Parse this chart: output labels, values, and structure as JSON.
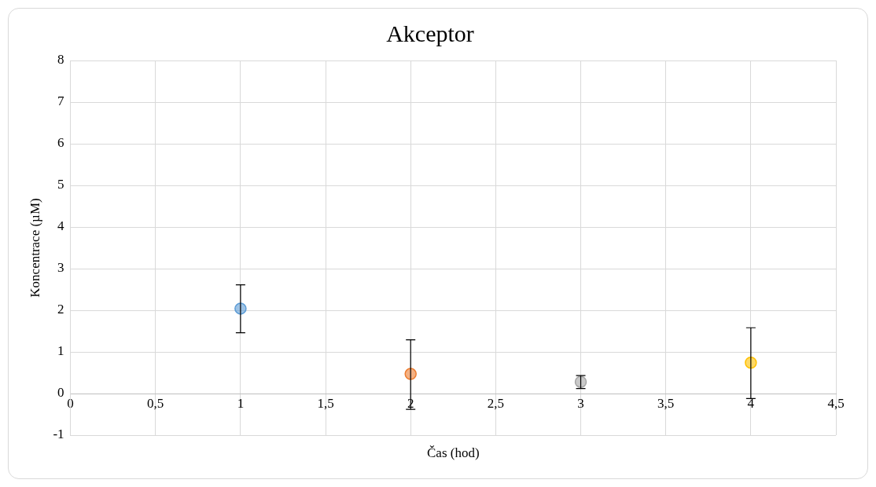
{
  "chart_data": {
    "type": "scatter",
    "title": "Akceptor",
    "xlabel": "Čas (hod)",
    "ylabel": "Koncentrace (µM)",
    "x": [
      1,
      2,
      3,
      4
    ],
    "values": [
      2.04,
      0.47,
      0.28,
      0.74
    ],
    "errors": [
      [
        1.46,
        2.61
      ],
      [
        -0.38,
        1.29
      ],
      [
        0.12,
        0.43
      ],
      [
        -0.12,
        1.58
      ]
    ],
    "colors": [
      "#5b9bd5",
      "#ed7d31",
      "#a5a5a5",
      "#ffc000"
    ],
    "xlim": [
      0,
      4.5
    ],
    "xticks": [
      0,
      {
        "value": 0.5,
        "label": "0,5"
      },
      1,
      {
        "value": 1.5,
        "label": "1,5"
      },
      2,
      {
        "value": 2.5,
        "label": "2,5"
      },
      3,
      {
        "value": 3.5,
        "label": "3,5"
      },
      4,
      {
        "value": 4.5,
        "label": "4,5"
      }
    ],
    "ylim": [
      -1,
      8
    ],
    "yticks": [
      -1,
      0,
      1,
      2,
      3,
      4,
      5,
      6,
      7,
      8
    ],
    "grid": true,
    "legend": false,
    "marker": "circle"
  }
}
